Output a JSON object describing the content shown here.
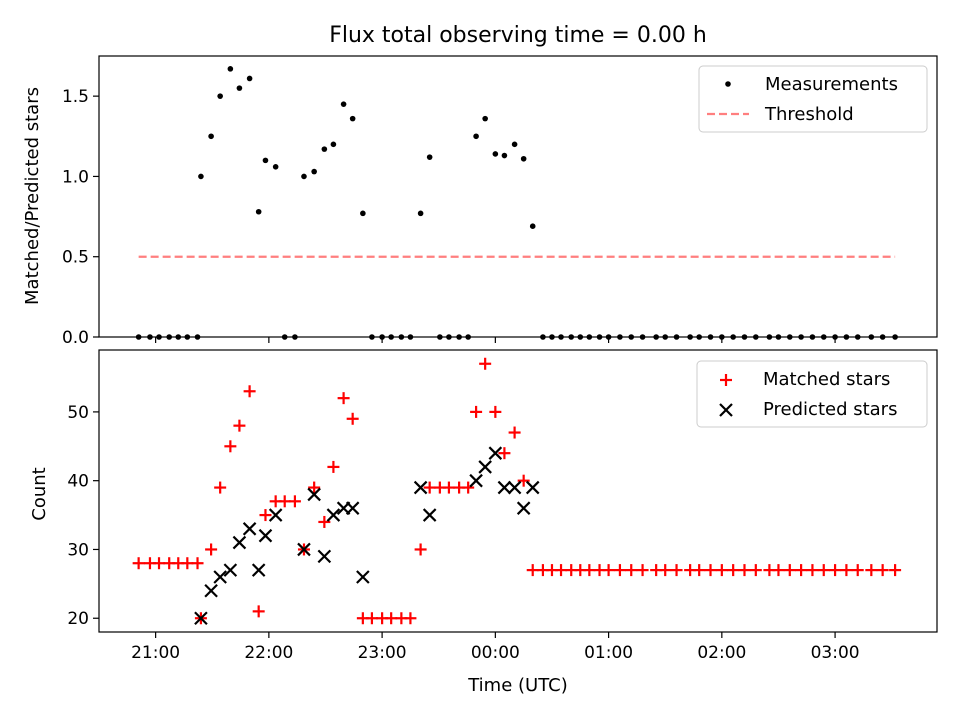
{
  "chart_data": [
    {
      "type": "scatter",
      "title": "Flux total observing time = 0.00 h",
      "ylabel": "Matched/Predicted stars",
      "xlim": [
        20.5,
        27.9
      ],
      "ylim": [
        0,
        1.75
      ],
      "yticks": [
        "0.0",
        "0.5",
        "1.0",
        "1.5"
      ],
      "legend": "top-right",
      "series": [
        {
          "name": "Measurements",
          "style": "dot",
          "color": "#000000",
          "x": [
            20.85,
            20.95,
            21.03,
            21.12,
            21.2,
            21.28,
            21.37,
            21.4,
            21.49,
            21.57,
            21.66,
            21.74,
            21.83,
            21.91,
            21.97,
            22.06,
            22.14,
            22.23,
            22.31,
            22.4,
            22.49,
            22.57,
            22.66,
            22.74,
            22.83,
            22.91,
            23.0,
            23.08,
            23.17,
            23.25,
            23.34,
            23.42,
            23.51,
            23.59,
            23.68,
            23.76,
            23.83,
            23.91,
            24.0,
            24.08,
            24.17,
            24.25,
            24.33,
            24.42,
            24.5,
            24.58,
            24.67,
            24.75,
            24.83,
            24.92,
            25.0,
            25.1,
            25.2,
            25.3,
            25.42,
            25.5,
            25.6,
            25.72,
            25.8,
            25.9,
            26.0,
            26.1,
            26.2,
            26.3,
            26.42,
            26.5,
            26.6,
            26.7,
            26.8,
            26.9,
            27.0,
            27.1,
            27.2,
            27.32,
            27.42,
            27.53
          ],
          "y": [
            0,
            0,
            0,
            0,
            0,
            0,
            0,
            1.0,
            1.25,
            1.5,
            1.67,
            1.55,
            1.61,
            0.78,
            1.1,
            1.06,
            0,
            0,
            1.0,
            1.03,
            1.17,
            1.2,
            1.45,
            1.36,
            0.77,
            0,
            0,
            0,
            0,
            0,
            0.77,
            1.12,
            0,
            0,
            0,
            0,
            1.25,
            1.36,
            1.14,
            1.13,
            1.2,
            1.11,
            0.69,
            0,
            0,
            0,
            0,
            0,
            0,
            0,
            0,
            0,
            0,
            0,
            0,
            0,
            0,
            0,
            0,
            0,
            0,
            0,
            0,
            0,
            0,
            0,
            0,
            0,
            0,
            0,
            0,
            0,
            0,
            0,
            0,
            0
          ]
        },
        {
          "name": "Threshold",
          "style": "dashed",
          "color": "#ff7f7f",
          "x": [
            20.85,
            27.53
          ],
          "y": [
            0.5,
            0.5
          ]
        }
      ]
    },
    {
      "type": "scatter",
      "xlabel": "Time (UTC)",
      "ylabel": "Count",
      "xlim": [
        20.5,
        27.9
      ],
      "ylim": [
        18,
        59
      ],
      "yticks": [
        "20",
        "30",
        "40",
        "50"
      ],
      "xticks": [
        "21:00",
        "22:00",
        "23:00",
        "00:00",
        "01:00",
        "02:00",
        "03:00"
      ],
      "legend": "top-right",
      "series": [
        {
          "name": "Matched stars",
          "style": "plus",
          "color": "#ff0000",
          "x": [
            20.85,
            20.95,
            21.03,
            21.12,
            21.2,
            21.28,
            21.37,
            21.4,
            21.49,
            21.57,
            21.66,
            21.74,
            21.83,
            21.91,
            21.97,
            22.06,
            22.14,
            22.23,
            22.31,
            22.4,
            22.49,
            22.57,
            22.66,
            22.74,
            22.83,
            22.91,
            23.0,
            23.08,
            23.17,
            23.25,
            23.34,
            23.42,
            23.51,
            23.59,
            23.68,
            23.76,
            23.83,
            23.91,
            24.0,
            24.08,
            24.17,
            24.25,
            24.33,
            24.42,
            24.5,
            24.58,
            24.67,
            24.75,
            24.83,
            24.92,
            25.0,
            25.1,
            25.2,
            25.3,
            25.42,
            25.5,
            25.6,
            25.72,
            25.8,
            25.9,
            26.0,
            26.1,
            26.2,
            26.3,
            26.42,
            26.5,
            26.6,
            26.7,
            26.8,
            26.9,
            27.0,
            27.1,
            27.2,
            27.32,
            27.42,
            27.53
          ],
          "y": [
            28,
            28,
            28,
            28,
            28,
            28,
            28,
            20,
            30,
            39,
            45,
            48,
            53,
            21,
            35,
            37,
            37,
            37,
            30,
            39,
            34,
            42,
            52,
            49,
            20,
            20,
            20,
            20,
            20,
            20,
            30,
            39,
            39,
            39,
            39,
            39,
            50,
            57,
            50,
            44,
            47,
            40,
            27,
            27,
            27,
            27,
            27,
            27,
            27,
            27,
            27,
            27,
            27,
            27,
            27,
            27,
            27,
            27,
            27,
            27,
            27,
            27,
            27,
            27,
            27,
            27,
            27,
            27,
            27,
            27,
            27,
            27,
            27,
            27,
            27,
            27
          ]
        },
        {
          "name": "Predicted stars",
          "style": "x",
          "color": "#000000",
          "x": [
            21.4,
            21.49,
            21.57,
            21.66,
            21.74,
            21.83,
            21.91,
            21.97,
            22.06,
            22.31,
            22.4,
            22.49,
            22.57,
            22.66,
            22.74,
            22.83,
            23.34,
            23.42,
            23.83,
            23.91,
            24.0,
            24.08,
            24.17,
            24.25,
            24.33
          ],
          "y": [
            20,
            24,
            26,
            27,
            31,
            33,
            27,
            32,
            35,
            30,
            38,
            29,
            35,
            36,
            36,
            26,
            39,
            35,
            40,
            42,
            44,
            39,
            39,
            36,
            39
          ]
        }
      ]
    }
  ]
}
